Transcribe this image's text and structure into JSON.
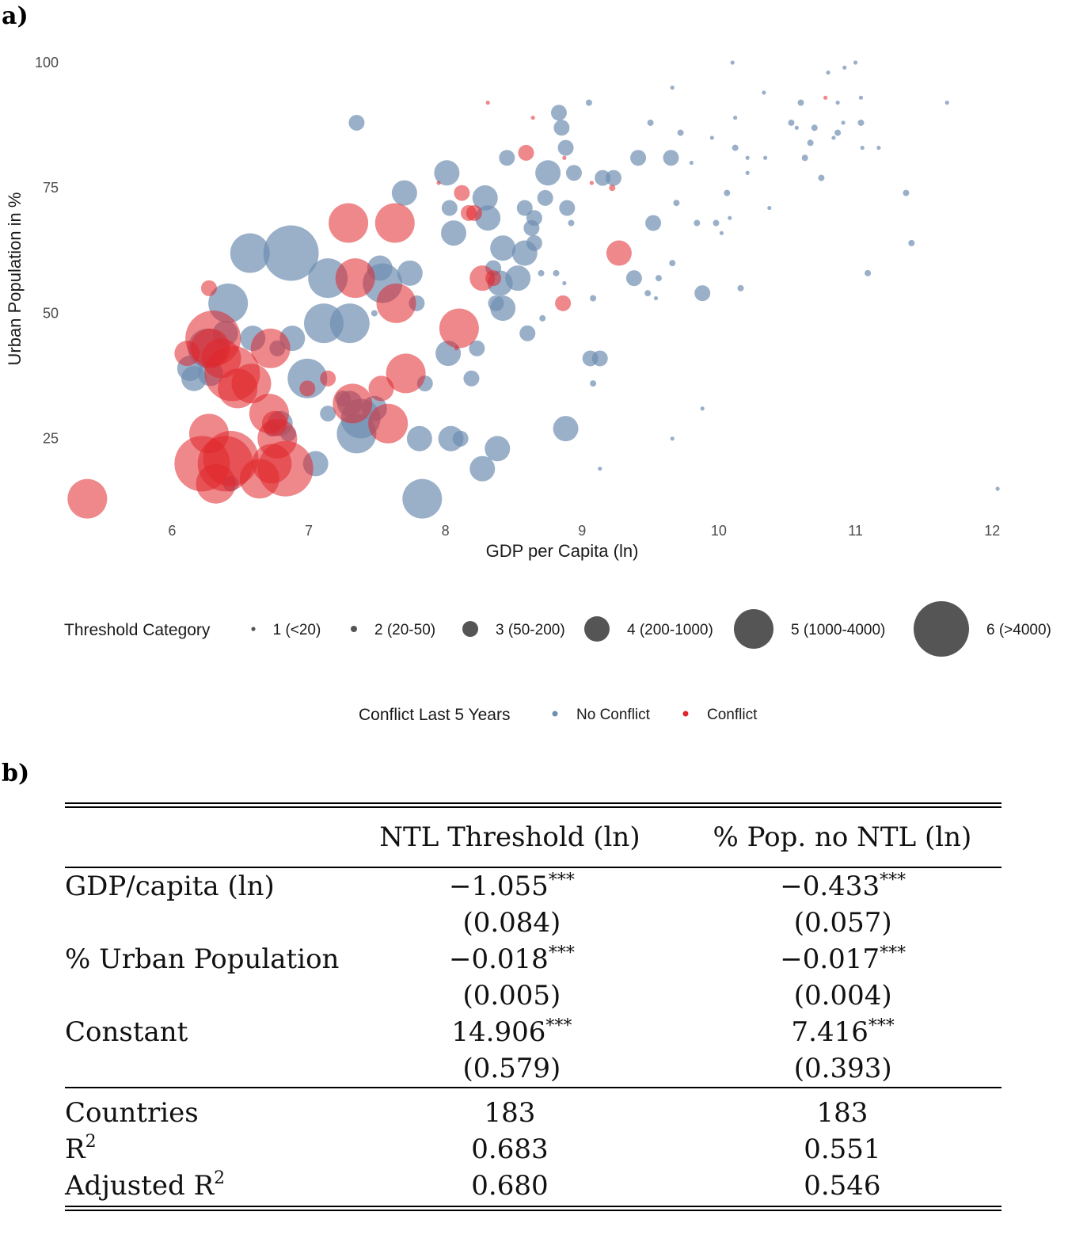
{
  "panel_a": {
    "label": "a)"
  },
  "panel_b": {
    "label": "b)"
  },
  "colors": {
    "no_conflict": "#6f8fb2",
    "conflict": "#e0262b",
    "legend_size": "#555555"
  },
  "chart_data": {
    "type": "scatter",
    "xlabel": "GDP per Capita (ln)",
    "ylabel": "Urban Population in %",
    "xlim": [
      5.1,
      12.3
    ],
    "ylim": [
      9,
      103
    ],
    "xticks": [
      "6",
      "7",
      "8",
      "9",
      "10",
      "11",
      "12"
    ],
    "yticks": [
      "25",
      "50",
      "75",
      "100"
    ],
    "size_legend": {
      "title": "Threshold Category",
      "items": [
        {
          "cat": 1,
          "label": "1 (<20)"
        },
        {
          "cat": 2,
          "label": "2 (20-50)"
        },
        {
          "cat": 3,
          "label": "3 (50-200)"
        },
        {
          "cat": 4,
          "label": "4 (200-1000)"
        },
        {
          "cat": 5,
          "label": "5 (1000-4000)"
        },
        {
          "cat": 6,
          "label": "6 (>4000)"
        }
      ]
    },
    "color_legend": {
      "title": "Conflict Last 5 Years",
      "items": [
        {
          "key": "no_conflict",
          "label": "No Conflict"
        },
        {
          "key": "conflict",
          "label": "Conflict"
        }
      ]
    },
    "series": [
      {
        "name": "No Conflict",
        "color_key": "no_conflict",
        "points": [
          [
            10.1,
            100,
            1
          ],
          [
            10.8,
            98,
            1
          ],
          [
            10.92,
            99,
            1
          ],
          [
            11.0,
            100,
            1
          ],
          [
            9.66,
            95,
            1
          ],
          [
            10.33,
            94,
            1
          ],
          [
            11.04,
            93,
            1
          ],
          [
            9.05,
            92,
            2
          ],
          [
            10.6,
            92,
            2
          ],
          [
            10.87,
            92,
            1
          ],
          [
            11.67,
            92,
            1
          ],
          [
            10.12,
            89,
            1
          ],
          [
            8.83,
            90,
            3
          ],
          [
            8.85,
            87,
            3
          ],
          [
            7.35,
            88,
            3
          ],
          [
            9.5,
            88,
            2
          ],
          [
            10.53,
            88,
            2
          ],
          [
            11.04,
            88,
            2
          ],
          [
            10.7,
            87,
            2
          ],
          [
            10.57,
            87,
            1
          ],
          [
            10.91,
            88,
            1
          ],
          [
            9.72,
            86,
            2
          ],
          [
            10.87,
            86,
            2
          ],
          [
            10.84,
            85,
            1
          ],
          [
            9.95,
            85,
            1
          ],
          [
            10.67,
            84,
            2
          ],
          [
            8.88,
            83,
            3
          ],
          [
            10.12,
            83,
            2
          ],
          [
            11.05,
            83,
            1
          ],
          [
            11.17,
            83,
            1
          ],
          [
            8.01,
            78,
            4
          ],
          [
            8.45,
            81,
            3
          ],
          [
            9.41,
            81,
            3
          ],
          [
            9.65,
            81,
            3
          ],
          [
            10.63,
            81,
            2
          ],
          [
            10.34,
            81,
            1
          ],
          [
            10.21,
            81,
            1
          ],
          [
            8.75,
            78,
            4
          ],
          [
            9.8,
            80,
            1
          ],
          [
            8.94,
            78,
            3
          ],
          [
            9.15,
            77,
            3
          ],
          [
            9.23,
            77,
            3
          ],
          [
            10.21,
            78,
            1
          ],
          [
            10.75,
            77,
            2
          ],
          [
            7.7,
            74,
            4
          ],
          [
            8.29,
            73,
            4
          ],
          [
            8.73,
            73,
            3
          ],
          [
            10.06,
            74,
            2
          ],
          [
            11.37,
            74,
            2
          ],
          [
            8.03,
            71,
            3
          ],
          [
            8.58,
            71,
            3
          ],
          [
            8.65,
            69,
            3
          ],
          [
            8.89,
            71,
            3
          ],
          [
            9.69,
            72,
            2
          ],
          [
            10.37,
            71,
            1
          ],
          [
            8.31,
            69,
            4
          ],
          [
            10.08,
            69,
            1
          ],
          [
            9.52,
            68,
            3
          ],
          [
            8.06,
            66,
            4
          ],
          [
            8.63,
            67,
            3
          ],
          [
            8.92,
            68,
            2
          ],
          [
            9.84,
            68,
            2
          ],
          [
            9.98,
            68,
            2
          ],
          [
            10.02,
            66,
            1
          ],
          [
            6.57,
            62,
            5
          ],
          [
            6.87,
            62,
            6
          ],
          [
            8.42,
            63,
            4
          ],
          [
            8.58,
            62,
            4
          ],
          [
            8.65,
            64,
            3
          ],
          [
            11.41,
            64,
            2
          ],
          [
            7.14,
            57,
            5
          ],
          [
            7.52,
            59,
            4
          ],
          [
            7.54,
            56,
            5
          ],
          [
            7.74,
            58,
            4
          ],
          [
            8.35,
            59,
            3
          ],
          [
            8.53,
            57,
            4
          ],
          [
            8.4,
            56,
            4
          ],
          [
            8.7,
            58,
            2
          ],
          [
            8.81,
            58,
            2
          ],
          [
            9.66,
            60,
            2
          ],
          [
            9.38,
            57,
            3
          ],
          [
            9.56,
            57,
            2
          ],
          [
            8.87,
            56,
            1
          ],
          [
            10.16,
            55,
            2
          ],
          [
            11.09,
            58,
            2
          ],
          [
            6.41,
            52,
            5
          ],
          [
            7.79,
            52,
            3
          ],
          [
            8.42,
            51,
            4
          ],
          [
            8.37,
            52,
            3
          ],
          [
            9.48,
            54,
            2
          ],
          [
            9.54,
            53,
            1
          ],
          [
            9.08,
            53,
            2
          ],
          [
            9.88,
            54,
            3
          ],
          [
            8.71,
            49,
            2
          ],
          [
            7.11,
            48,
            5
          ],
          [
            7.3,
            48,
            5
          ],
          [
            7.48,
            50,
            2
          ],
          [
            6.59,
            45,
            4
          ],
          [
            6.88,
            45,
            4
          ],
          [
            6.26,
            43,
            5
          ],
          [
            6.39,
            46,
            4
          ],
          [
            6.77,
            43,
            3
          ],
          [
            8.02,
            42,
            4
          ],
          [
            8.23,
            43,
            3
          ],
          [
            8.6,
            46,
            3
          ],
          [
            9.06,
            41,
            3
          ],
          [
            9.13,
            41,
            3
          ],
          [
            6.13,
            39,
            4
          ],
          [
            6.28,
            38,
            4
          ],
          [
            6.16,
            37,
            4
          ],
          [
            6.99,
            37,
            5
          ],
          [
            7.85,
            36,
            3
          ],
          [
            8.19,
            37,
            3
          ],
          [
            9.08,
            36,
            2
          ],
          [
            7.25,
            33,
            3
          ],
          [
            7.3,
            32,
            4
          ],
          [
            7.48,
            31,
            4
          ],
          [
            7.38,
            29,
            5
          ],
          [
            7.35,
            26,
            5
          ],
          [
            7.14,
            30,
            3
          ],
          [
            6.79,
            28,
            4
          ],
          [
            6.73,
            27,
            3
          ],
          [
            6.85,
            26,
            3
          ],
          [
            9.88,
            31,
            1
          ],
          [
            8.88,
            27,
            4
          ],
          [
            7.81,
            25,
            4
          ],
          [
            8.04,
            25,
            4
          ],
          [
            8.11,
            25,
            3
          ],
          [
            8.38,
            23,
            4
          ],
          [
            9.66,
            25,
            1
          ],
          [
            7.05,
            20,
            4
          ],
          [
            8.27,
            19,
            4
          ],
          [
            6.43,
            16,
            3
          ],
          [
            9.13,
            19,
            1
          ],
          [
            12.04,
            15,
            1
          ],
          [
            7.83,
            13,
            5
          ]
        ]
      },
      {
        "name": "Conflict",
        "color_key": "conflict",
        "points": [
          [
            8.31,
            92,
            1
          ],
          [
            10.78,
            93,
            1
          ],
          [
            8.64,
            89,
            1
          ],
          [
            8.59,
            82,
            3
          ],
          [
            8.87,
            81,
            1
          ],
          [
            7.95,
            76,
            1
          ],
          [
            8.12,
            74,
            3
          ],
          [
            9.07,
            76,
            1
          ],
          [
            9.22,
            75,
            2
          ],
          [
            8.17,
            70,
            3
          ],
          [
            8.21,
            70,
            3
          ],
          [
            7.29,
            68,
            5
          ],
          [
            7.63,
            68,
            5
          ],
          [
            9.27,
            62,
            4
          ],
          [
            6.27,
            55,
            3
          ],
          [
            8.27,
            57,
            4
          ],
          [
            8.35,
            57,
            3
          ],
          [
            7.34,
            57,
            5
          ],
          [
            7.64,
            52,
            5
          ],
          [
            8.86,
            52,
            3
          ],
          [
            6.3,
            45,
            6
          ],
          [
            6.28,
            43,
            5
          ],
          [
            6.11,
            42,
            4
          ],
          [
            6.36,
            41,
            5
          ],
          [
            6.72,
            43,
            5
          ],
          [
            6.44,
            38,
            6
          ],
          [
            6.58,
            36,
            5
          ],
          [
            6.48,
            35,
            5
          ],
          [
            8.1,
            47,
            5
          ],
          [
            7.14,
            37,
            3
          ],
          [
            7.71,
            38,
            5
          ],
          [
            8.08,
            43,
            1
          ],
          [
            6.99,
            35,
            3
          ],
          [
            7.32,
            32,
            5
          ],
          [
            7.53,
            35,
            4
          ],
          [
            7.58,
            28,
            5
          ],
          [
            6.71,
            30,
            5
          ],
          [
            6.75,
            28,
            4
          ],
          [
            6.27,
            26,
            5
          ],
          [
            6.43,
            21,
            6
          ],
          [
            6.39,
            20,
            6
          ],
          [
            6.22,
            20,
            6
          ],
          [
            6.32,
            16,
            5
          ],
          [
            6.73,
            20,
            5
          ],
          [
            6.77,
            25,
            5
          ],
          [
            6.83,
            19,
            6
          ],
          [
            6.64,
            17,
            5
          ],
          [
            5.38,
            13,
            5
          ]
        ]
      }
    ]
  },
  "regression_table": {
    "headers": [
      "",
      "NTL Threshold (ln)",
      "% Pop. no NTL (ln)"
    ],
    "rows": [
      {
        "label": "GDP/capita (ln)",
        "c1": "−1.055",
        "c1_stars": "***",
        "c2": "−0.433",
        "c2_stars": "***"
      },
      {
        "label": "",
        "c1": "(0.084)",
        "c1_stars": "",
        "c2": "(0.057)",
        "c2_stars": ""
      },
      {
        "label": "% Urban Population",
        "c1": "−0.018",
        "c1_stars": "***",
        "c2": "−0.017",
        "c2_stars": "***"
      },
      {
        "label": "",
        "c1": "(0.005)",
        "c1_stars": "",
        "c2": "(0.004)",
        "c2_stars": ""
      },
      {
        "label": "Constant",
        "c1": "14.906",
        "c1_stars": "***",
        "c2": "7.416",
        "c2_stars": "***"
      },
      {
        "label": "",
        "c1": "(0.579)",
        "c1_stars": "",
        "c2": "(0.393)",
        "c2_stars": ""
      }
    ],
    "stats": [
      {
        "label": "Countries",
        "label_sup": "",
        "c1": "183",
        "c2": "183"
      },
      {
        "label": "R",
        "label_sup": "2",
        "c1": "0.683",
        "c2": "0.551"
      },
      {
        "label": "Adjusted R",
        "label_sup": "2",
        "c1": "0.680",
        "c2": "0.546"
      }
    ]
  }
}
